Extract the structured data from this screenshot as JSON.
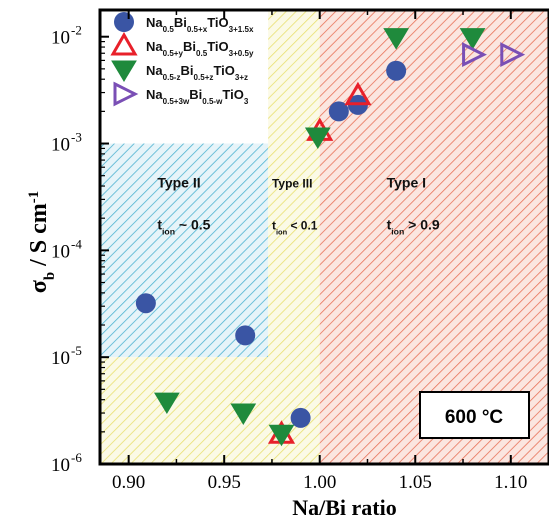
{
  "chart_data": {
    "type": "scatter",
    "xlabel": "Na/Bi ratio",
    "ylabel": {
      "main": "σ",
      "sub": "b",
      "mid": " / S cm",
      "sup": "-1"
    },
    "xlim": [
      0.885,
      1.12
    ],
    "ylim_log10": [
      -6,
      -1.75
    ],
    "yscale": "log",
    "x_ticks": [
      {
        "v": 0.9,
        "label": "0.90"
      },
      {
        "v": 0.95,
        "label": "0.95"
      },
      {
        "v": 1.0,
        "label": "1.00"
      },
      {
        "v": 1.05,
        "label": "1.05"
      },
      {
        "v": 1.1,
        "label": "1.10"
      }
    ],
    "y_ticks": [
      {
        "e": -6,
        "base": "10",
        "exp": "-6"
      },
      {
        "e": -5,
        "base": "10",
        "exp": "-5"
      },
      {
        "e": -4,
        "base": "10",
        "exp": "-4"
      },
      {
        "e": -3,
        "base": "10",
        "exp": "-3"
      },
      {
        "e": -2,
        "base": "10",
        "exp": "-2"
      }
    ],
    "temperature_label": "600 °C",
    "regions": [
      {
        "x": [
          0.885,
          0.973
        ],
        "ylog": [
          -5,
          -3
        ],
        "color": "#4fb3d1",
        "bg": "#e6f4f9",
        "direction": "right"
      },
      {
        "x": [
          0.885,
          0.973
        ],
        "ylog": [
          -6,
          -5
        ],
        "color": "#e8e070",
        "bg": "#fbfae6",
        "direction": "right"
      },
      {
        "x": [
          0.973,
          1.0
        ],
        "ylog": [
          -6,
          -1.75
        ],
        "color": "#e8e070",
        "bg": "#fbfae6",
        "direction": "right"
      },
      {
        "x": [
          1.0,
          1.12
        ],
        "ylog": [
          -6,
          -1.75
        ],
        "color": "#e8735a",
        "bg": "#fbe6e0",
        "direction": "right"
      }
    ],
    "annotations": [
      {
        "type": "Type II",
        "t_pre": "t",
        "t_sub": "ion",
        "t_rest": " ~ 0.5",
        "x": 0.915,
        "ylog": -3.45,
        "size": 14
      },
      {
        "type": "Type III",
        "t_pre": "t",
        "t_sub": "ion",
        "t_rest": " < 0.1",
        "x": 0.975,
        "ylog": -3.45,
        "size": 12
      },
      {
        "type": "Type I",
        "t_pre": "t",
        "t_sub": "ion",
        "t_rest": " > 0.9",
        "x": 1.035,
        "ylog": -3.45,
        "size": 14
      }
    ],
    "series": [
      {
        "marker": "circle",
        "color": "#3a55a4",
        "legend": {
          "parts": [
            [
              "Na",
              ""
            ],
            [
              "0.5",
              "sub"
            ],
            [
              "Bi",
              ""
            ],
            [
              "0.5+x",
              "sub"
            ],
            [
              "TiO",
              ""
            ],
            [
              "3+1.5x",
              "sub"
            ]
          ]
        },
        "points": [
          [
            0.909,
            3.2e-05
          ],
          [
            0.961,
            1.6e-05
          ],
          [
            0.99,
            2.7e-06
          ],
          [
            1.01,
            0.002
          ],
          [
            1.02,
            0.0023
          ],
          [
            1.04,
            0.0048
          ]
        ]
      },
      {
        "marker": "triangle-up-open",
        "color": "#e8202a",
        "legend": {
          "parts": [
            [
              "Na",
              ""
            ],
            [
              "0.5+y",
              "sub"
            ],
            [
              "Bi",
              ""
            ],
            [
              "0.5",
              "sub"
            ],
            [
              "TiO",
              ""
            ],
            [
              "3+0.5y",
              "sub"
            ]
          ]
        },
        "points": [
          [
            0.98,
            1.9e-06
          ],
          [
            1.0,
            0.0013
          ],
          [
            1.02,
            0.0028
          ]
        ]
      },
      {
        "marker": "triangle-down",
        "color": "#1f8a3c",
        "legend": {
          "parts": [
            [
              "Na",
              ""
            ],
            [
              "0.5-z",
              "sub"
            ],
            [
              "Bi",
              ""
            ],
            [
              "0.5+z",
              "sub"
            ],
            [
              "TiO",
              ""
            ],
            [
              "3+z",
              "sub"
            ]
          ]
        },
        "points": [
          [
            0.92,
            3.8e-06
          ],
          [
            0.96,
            3e-06
          ],
          [
            0.98,
            1.9e-06
          ],
          [
            0.999,
            0.00115
          ],
          [
            1.04,
            0.0098
          ],
          [
            1.08,
            0.0098
          ]
        ]
      },
      {
        "marker": "triangle-right-open",
        "color": "#7a4fb5",
        "legend": {
          "parts": [
            [
              "Na",
              ""
            ],
            [
              "0.5+3w",
              "sub"
            ],
            [
              "Bi",
              ""
            ],
            [
              "0.5-w",
              "sub"
            ],
            [
              "TiO",
              ""
            ],
            [
              "3",
              "sub"
            ]
          ]
        },
        "points": [
          [
            1.08,
            0.0068
          ],
          [
            1.1,
            0.0068
          ]
        ]
      }
    ]
  }
}
